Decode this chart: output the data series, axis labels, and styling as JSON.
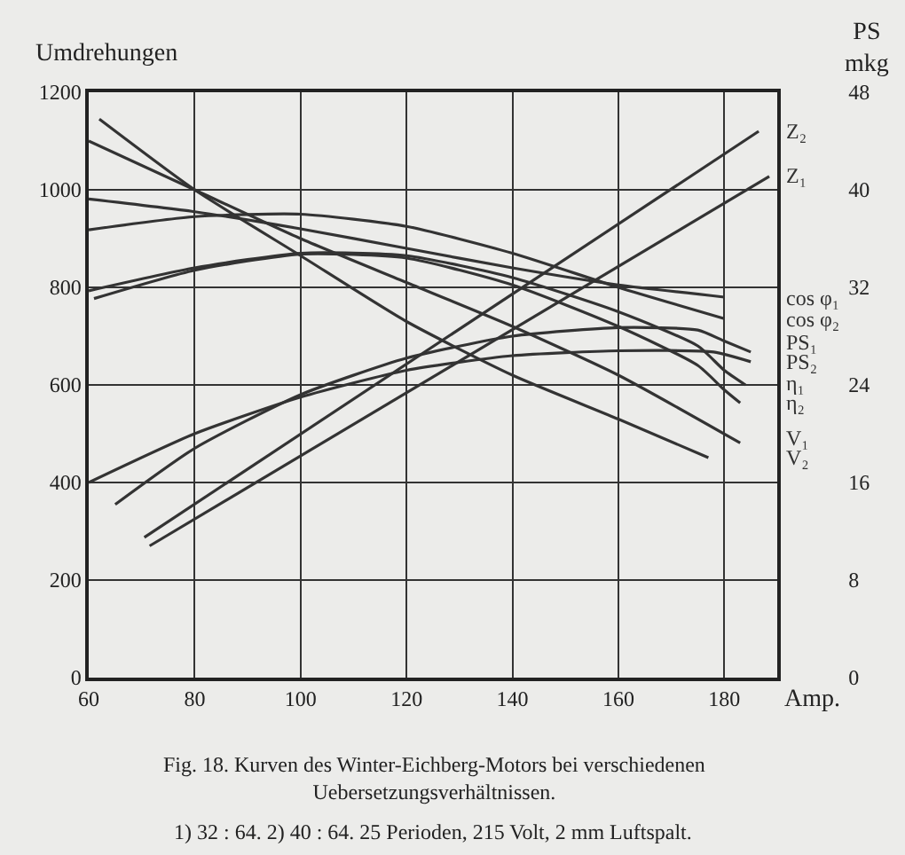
{
  "chart_data": {
    "type": "line",
    "xlabel": "Amp.",
    "ylabel": "Umdrehungen",
    "y2label": "PS mkg",
    "xlim": [
      60,
      190
    ],
    "xticks": [
      60,
      80,
      100,
      120,
      140,
      160,
      180
    ],
    "ylim": [
      0,
      1200
    ],
    "yticks": [
      0,
      200,
      400,
      600,
      800,
      1000,
      1200
    ],
    "y2lim": [
      0,
      48
    ],
    "y2ticks": [
      0,
      8,
      16,
      24,
      32,
      40,
      48
    ],
    "grid": true,
    "legend": false,
    "marker": "none",
    "line_style": "solid",
    "series": [
      {
        "name": "Z₂",
        "color": "#333333",
        "axis": "y2",
        "x": [
          70.5,
          186.5
        ],
        "values": [
          11.5,
          44.8
        ]
      },
      {
        "name": "Z₁",
        "color": "#333333",
        "axis": "y2",
        "x": [
          71.5,
          188.5
        ],
        "values": [
          10.8,
          41.1
        ]
      },
      {
        "name": "cos φ₁",
        "color": "#333333",
        "x": [
          60,
          80,
          100,
          120,
          140,
          160,
          180
        ],
        "values": [
          981,
          955,
          920,
          880,
          840,
          805,
          780
        ]
      },
      {
        "name": "cos φ₂",
        "color": "#333333",
        "x": [
          60,
          80,
          100,
          120,
          140,
          160,
          180
        ],
        "values": [
          918,
          945,
          950,
          925,
          870,
          800,
          736
        ]
      },
      {
        "name": "PS₁",
        "color": "#333333",
        "axis": "y2",
        "x": [
          65,
          80,
          100,
          120,
          140,
          160,
          175,
          180,
          185
        ],
        "values": [
          14.2,
          18.8,
          23.2,
          26.2,
          28,
          28.7,
          28.5,
          27.6,
          26.7
        ]
      },
      {
        "name": "PS₂",
        "color": "#333333",
        "axis": "y2",
        "x": [
          60,
          80,
          100,
          120,
          140,
          160,
          178,
          185
        ],
        "values": [
          16,
          20,
          23,
          25.2,
          26.4,
          26.8,
          26.7,
          25.9
        ]
      },
      {
        "name": "η₁",
        "color": "#333333",
        "x": [
          60,
          80,
          100,
          120,
          140,
          160,
          175,
          180,
          184
        ],
        "values": [
          793,
          840,
          870,
          865,
          820,
          750,
          680,
          630,
          600
        ]
      },
      {
        "name": "η₂",
        "color": "#333333",
        "x": [
          61,
          80,
          100,
          120,
          140,
          160,
          175,
          180,
          183
        ],
        "values": [
          777,
          835,
          868,
          860,
          805,
          720,
          640,
          590,
          563
        ]
      },
      {
        "name": "V₁",
        "color": "#333333",
        "x": [
          60,
          80,
          100,
          120,
          140,
          160,
          183
        ],
        "values": [
          1100,
          1000,
          900,
          810,
          720,
          620,
          481
        ]
      },
      {
        "name": "V₂",
        "color": "#333333",
        "x": [
          62,
          80,
          100,
          120,
          140,
          160,
          177
        ],
        "values": [
          1145,
          1000,
          865,
          730,
          620,
          530,
          451
        ]
      }
    ],
    "annotations": [
      "Fig. 18. Kurven des Winter-Eichberg-Motors bei verschiedenen Uebersetzungsverhältnissen.",
      "1) 32 : 64. 2) 40 : 64. 25 Perioden, 215 Volt, 2 mm Luftspalt."
    ]
  }
}
